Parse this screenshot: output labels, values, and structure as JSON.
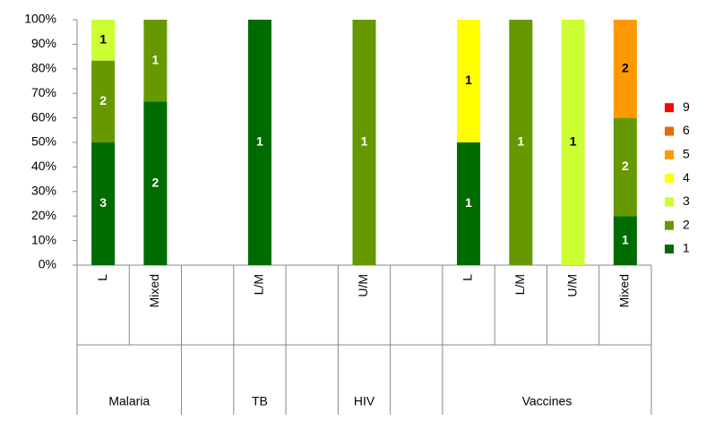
{
  "chart_data": {
    "type": "stacked_percent_bar",
    "categories": [
      "L",
      "Mixed",
      null,
      "L/M",
      null,
      "U/M",
      null,
      "L",
      "L/M",
      "U/M",
      "Mixed"
    ],
    "groups": [
      "Malaria",
      null,
      "TB",
      null,
      "HIV",
      null,
      "Vaccines"
    ],
    "group_sizes": [
      2,
      1,
      1,
      1,
      1,
      1,
      4
    ],
    "series": [
      {
        "name": "1",
        "color": "#006b00",
        "label_color": "#ffffff",
        "values": [
          3,
          2,
          null,
          1,
          null,
          null,
          null,
          1,
          null,
          null,
          1
        ]
      },
      {
        "name": "2",
        "color": "#669900",
        "label_color": "#ffffff",
        "values": [
          2,
          1,
          null,
          null,
          null,
          1,
          null,
          null,
          1,
          null,
          2
        ]
      },
      {
        "name": "3",
        "color": "#ccff33",
        "label_color": "#000000",
        "values": [
          1,
          null,
          null,
          null,
          null,
          null,
          null,
          null,
          null,
          1,
          null
        ]
      },
      {
        "name": "4",
        "color": "#ffff00",
        "label_color": "#000000",
        "values": [
          null,
          null,
          null,
          null,
          null,
          null,
          null,
          1,
          null,
          null,
          null
        ]
      },
      {
        "name": "5",
        "color": "#ff9900",
        "label_color": "#000000",
        "values": [
          null,
          null,
          null,
          null,
          null,
          null,
          null,
          null,
          null,
          null,
          2
        ]
      },
      {
        "name": "6",
        "color": "#e46c0a",
        "label_color": "#000000",
        "values": [
          null,
          null,
          null,
          null,
          null,
          null,
          null,
          null,
          null,
          null,
          null
        ]
      },
      {
        "name": "9",
        "color": "#ff0000",
        "label_color": "#000000",
        "values": [
          null,
          null,
          null,
          null,
          null,
          null,
          null,
          null,
          null,
          null,
          null
        ]
      }
    ],
    "ylim": [
      0,
      100
    ],
    "yticks": [
      {
        "value": 0,
        "label": "0%"
      },
      {
        "value": 10,
        "label": "10%"
      },
      {
        "value": 20,
        "label": "20%"
      },
      {
        "value": 30,
        "label": "30%"
      },
      {
        "value": 40,
        "label": "40%"
      },
      {
        "value": 50,
        "label": "50%"
      },
      {
        "value": 60,
        "label": "60%"
      },
      {
        "value": 70,
        "label": "70%"
      },
      {
        "value": 80,
        "label": "80%"
      },
      {
        "value": 90,
        "label": "90%"
      },
      {
        "value": 100,
        "label": "100%"
      }
    ],
    "legend": "right"
  }
}
